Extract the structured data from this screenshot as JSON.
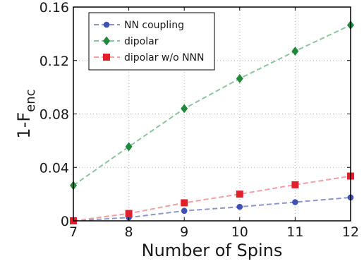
{
  "chart_data": {
    "type": "line",
    "xlabel": "Number of Spins",
    "ylabel": "1-F",
    "ylabel_subscript": "enc",
    "xlim": [
      7,
      12
    ],
    "ylim": [
      0,
      0.16
    ],
    "xticks": [
      "7",
      "8",
      "9",
      "10",
      "11",
      "12"
    ],
    "yticks": [
      "0",
      "0.04",
      "0.08",
      "0.12",
      "0.16"
    ],
    "grid": true,
    "legend_position": "top-left",
    "x": [
      7,
      8,
      9,
      10,
      11,
      12
    ],
    "series": [
      {
        "name": "NN coupling",
        "marker": "circle",
        "color": "#3f51b5",
        "line_color": "#8c96cc",
        "values": [
          0.0,
          0.0025,
          0.0075,
          0.0105,
          0.014,
          0.0175
        ]
      },
      {
        "name": "dipolar",
        "marker": "diamond",
        "color": "#1f8a3b",
        "line_color": "#8ec4a0",
        "values": [
          0.0265,
          0.0555,
          0.084,
          0.1065,
          0.127,
          0.1465
        ]
      },
      {
        "name": "dipolar w/o NNN",
        "marker": "square",
        "color": "#e0202a",
        "line_color": "#f0a0a4",
        "values": [
          0.0,
          0.0055,
          0.0135,
          0.02,
          0.027,
          0.0335
        ]
      }
    ]
  }
}
